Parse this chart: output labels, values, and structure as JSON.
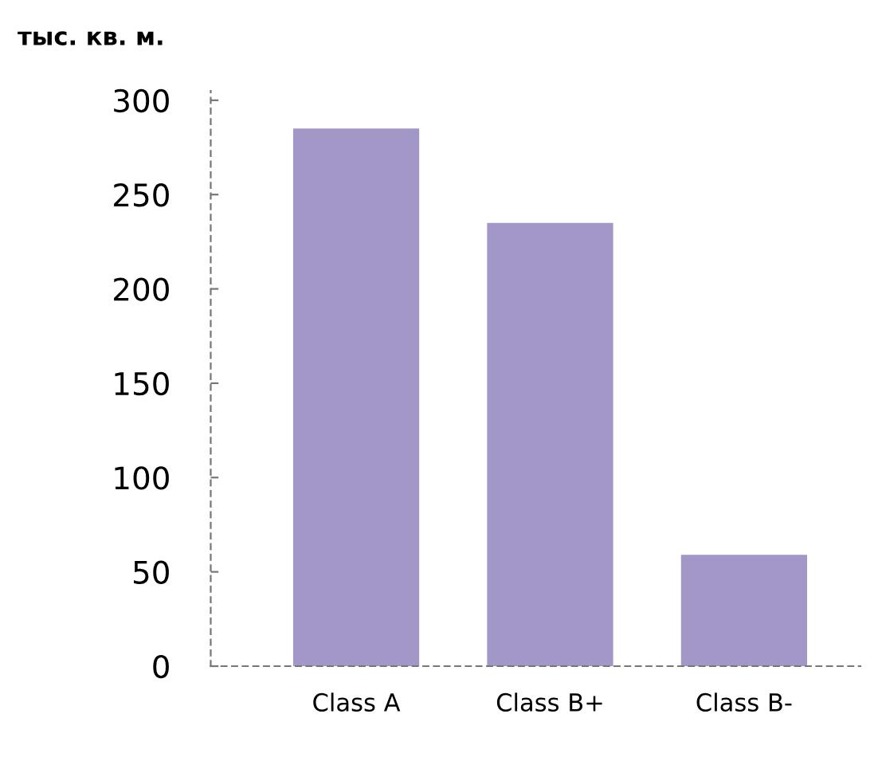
{
  "chart_data": {
    "type": "bar",
    "ylabel": "тыс. кв. м.",
    "categories": [
      "Class A",
      "Class B+",
      "Class B-"
    ],
    "values": [
      285,
      235,
      59
    ],
    "color": "#a397c8",
    "ylim": [
      0,
      305
    ],
    "yticks": [
      0,
      50,
      100,
      150,
      200,
      250,
      300
    ],
    "grid": false,
    "legend": false
  }
}
